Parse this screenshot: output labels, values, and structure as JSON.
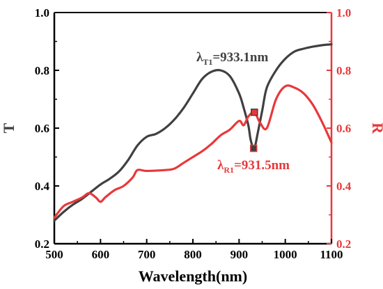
{
  "chart_data": {
    "type": "line",
    "xlabel": "Wavelength(nm)",
    "ylabel_left": "T",
    "ylabel_right": "R",
    "xlim": [
      500,
      1100
    ],
    "ylim_left": [
      0.2,
      1.0
    ],
    "ylim_right": [
      0.2,
      1.0
    ],
    "x_ticks": [
      "500",
      "600",
      "700",
      "800",
      "900",
      "1000",
      "1100"
    ],
    "y_ticks_left": [
      "0.2",
      "0.4",
      "0.6",
      "0.8",
      "1.0"
    ],
    "y_ticks_right": [
      "0.2",
      "0.4",
      "0.6",
      "0.8",
      "1.0"
    ],
    "grid": false,
    "colors": {
      "T": "#404040",
      "R": "#e8383a"
    },
    "series": [
      {
        "axis": "left",
        "color": "#404040",
        "x": [
          500,
          520,
          540,
          560,
          580,
          600,
          620,
          640,
          660,
          680,
          700,
          720,
          740,
          760,
          780,
          800,
          820,
          840,
          860,
          880,
          900,
          910,
          920,
          925,
          931.5,
          935,
          940,
          950,
          960,
          980,
          1000,
          1020,
          1040,
          1060,
          1080,
          1100
        ],
        "y": [
          0.28,
          0.31,
          0.335,
          0.355,
          0.38,
          0.405,
          0.425,
          0.45,
          0.49,
          0.54,
          0.57,
          0.58,
          0.6,
          0.63,
          0.67,
          0.72,
          0.77,
          0.795,
          0.8,
          0.78,
          0.72,
          0.67,
          0.61,
          0.56,
          0.53,
          0.54,
          0.58,
          0.66,
          0.74,
          0.8,
          0.84,
          0.865,
          0.875,
          0.882,
          0.887,
          0.89
        ]
      },
      {
        "axis": "right",
        "color": "#e8383a",
        "x": [
          500,
          520,
          540,
          560,
          575,
          590,
          600,
          610,
          630,
          650,
          670,
          680,
          700,
          740,
          760,
          780,
          800,
          820,
          840,
          860,
          880,
          900,
          910,
          920,
          933.1,
          945,
          960,
          980,
          1000,
          1020,
          1040,
          1060,
          1080,
          1100
        ],
        "y": [
          0.29,
          0.33,
          0.345,
          0.36,
          0.375,
          0.36,
          0.345,
          0.36,
          0.385,
          0.4,
          0.43,
          0.455,
          0.452,
          0.455,
          0.46,
          0.48,
          0.5,
          0.52,
          0.545,
          0.575,
          0.595,
          0.625,
          0.61,
          0.64,
          0.655,
          0.62,
          0.6,
          0.7,
          0.745,
          0.74,
          0.72,
          0.68,
          0.62,
          0.55
        ]
      }
    ],
    "markers": [
      {
        "series": 0,
        "x": 931.5,
        "y": 0.53,
        "color": "#404040",
        "annotation_color": "#e8383a"
      },
      {
        "series": 1,
        "x": 933.1,
        "y": 0.655,
        "color": "#e8383a",
        "annotation_color": "#404040"
      }
    ],
    "annotations": {
      "t1": {
        "prefix": "λ",
        "sub": "T1",
        "value": "=933.1nm"
      },
      "r1": {
        "prefix": "λ",
        "sub": "R1",
        "value": "=931.5nm"
      }
    }
  }
}
